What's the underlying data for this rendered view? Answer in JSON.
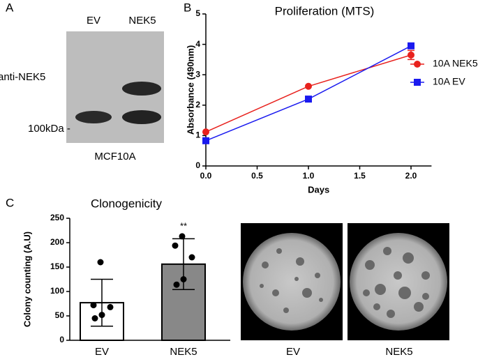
{
  "panel_labels": [
    "A",
    "B",
    "C"
  ],
  "blot": {
    "lanes": [
      "EV",
      "NEK5"
    ],
    "labels": [
      "anti-NEK5",
      "100kDa -"
    ],
    "cell_line": "MCF10A"
  },
  "plates": {
    "labels": [
      "EV",
      "NEK5"
    ]
  },
  "chart_data": [
    {
      "type": "line",
      "title": "Proliferation (MTS)",
      "x_label": "Days",
      "y_label": "Absorbance (490nm)",
      "x": [
        0,
        1,
        2
      ],
      "series": [
        {
          "name": "10A NEK5",
          "color": "#e8211d",
          "marker": "circle",
          "values": [
            1.12,
            2.62,
            3.65
          ],
          "errors": [
            null,
            null,
            0.15
          ]
        },
        {
          "name": "10A EV",
          "color": "#1a1aef",
          "marker": "square",
          "values": [
            0.83,
            2.2,
            3.95
          ],
          "errors": [
            null,
            null,
            0.08
          ]
        }
      ],
      "xlim": [
        0,
        2.2
      ],
      "xticks": [
        {
          "value": 0,
          "label": "0.0"
        },
        {
          "value": 0.5,
          "label": "0.5"
        },
        {
          "value": 1,
          "label": "1.0"
        },
        {
          "value": 1.5,
          "label": "1.5"
        },
        {
          "value": 2,
          "label": "2.0"
        }
      ],
      "ylim": [
        0,
        5
      ],
      "yticks": [
        0,
        1,
        2,
        3,
        4,
        5
      ],
      "legend": "right"
    },
    {
      "type": "bar",
      "title": "Clonogenicity",
      "y_label": "Colony counting (A.U)",
      "categories": [
        "EV",
        "NEK5"
      ],
      "values": [
        77,
        156
      ],
      "errors": [
        48,
        52
      ],
      "points": [
        [
          160,
          72,
          68,
          52,
          45
        ],
        [
          213,
          194,
          170,
          125,
          114
        ]
      ],
      "colors": [
        "#ffffff",
        "#888888"
      ],
      "annotations": [
        null,
        "**"
      ],
      "ylim": [
        0,
        250
      ],
      "yticks": [
        0,
        50,
        100,
        150,
        200,
        250
      ]
    }
  ]
}
